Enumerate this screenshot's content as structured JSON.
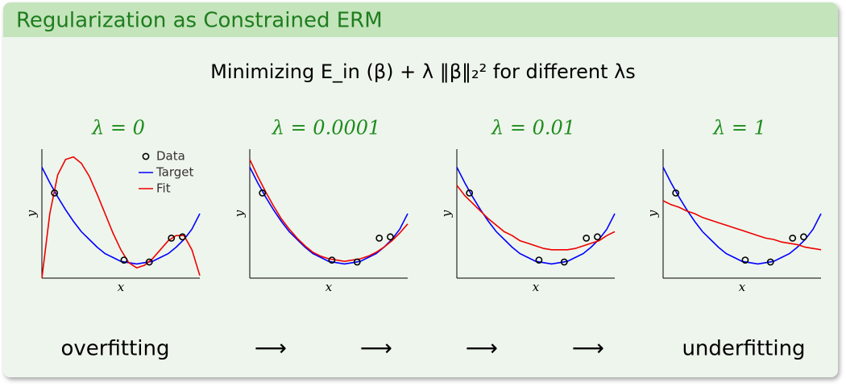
{
  "header": {
    "title": "Regularization as Constrained ERM",
    "subtitle": "Minimizing E_in (β) + λ ‖β‖₂² for different λs"
  },
  "chart_data": [
    {
      "type": "line",
      "title": "λ = 0",
      "xlabel": "x",
      "ylabel": "y",
      "xlim": [
        0,
        1
      ],
      "ylim": [
        0,
        1
      ],
      "x": [
        0,
        0.05,
        0.1,
        0.15,
        0.2,
        0.25,
        0.3,
        0.35,
        0.4,
        0.45,
        0.5,
        0.55,
        0.6,
        0.65,
        0.7,
        0.75,
        0.8,
        0.85,
        0.9,
        0.95,
        1
      ],
      "series": [
        {
          "name": "Target",
          "color": "#0000ff",
          "values": [
            0.86,
            0.74,
            0.63,
            0.53,
            0.44,
            0.36,
            0.3,
            0.24,
            0.19,
            0.16,
            0.13,
            0.12,
            0.11,
            0.12,
            0.13,
            0.16,
            0.19,
            0.24,
            0.3,
            0.38,
            0.5
          ]
        },
        {
          "name": "Fit",
          "color": "#ee0000",
          "values": [
            0,
            0.5,
            0.8,
            0.92,
            0.94,
            0.89,
            0.79,
            0.65,
            0.5,
            0.35,
            0.22,
            0.12,
            0.08,
            0.1,
            0.15,
            0.22,
            0.29,
            0.33,
            0.33,
            0.22,
            0.02
          ]
        }
      ],
      "points": {
        "name": "Data",
        "color": "#000000",
        "x": [
          0.08,
          0.52,
          0.68,
          0.82,
          0.89
        ],
        "y": [
          0.66,
          0.14,
          0.125,
          0.31,
          0.32
        ]
      }
    },
    {
      "type": "line",
      "title": "λ = 0.0001",
      "xlabel": "x",
      "ylabel": "y",
      "xlim": [
        0,
        1
      ],
      "ylim": [
        0,
        1
      ],
      "x": [
        0,
        0.05,
        0.1,
        0.15,
        0.2,
        0.25,
        0.3,
        0.35,
        0.4,
        0.45,
        0.5,
        0.55,
        0.6,
        0.65,
        0.7,
        0.75,
        0.8,
        0.85,
        0.9,
        0.95,
        1
      ],
      "series": [
        {
          "color": "#0000ff",
          "values": [
            0.86,
            0.74,
            0.63,
            0.53,
            0.44,
            0.36,
            0.3,
            0.24,
            0.19,
            0.16,
            0.13,
            0.12,
            0.11,
            0.12,
            0.13,
            0.16,
            0.19,
            0.24,
            0.3,
            0.38,
            0.5
          ]
        },
        {
          "color": "#ee0000",
          "values": [
            0.92,
            0.79,
            0.67,
            0.56,
            0.46,
            0.38,
            0.31,
            0.25,
            0.2,
            0.17,
            0.15,
            0.14,
            0.13,
            0.14,
            0.15,
            0.17,
            0.2,
            0.24,
            0.29,
            0.35,
            0.42
          ]
        }
      ],
      "points": {
        "color": "#000000",
        "x": [
          0.08,
          0.52,
          0.68,
          0.82,
          0.89
        ],
        "y": [
          0.66,
          0.14,
          0.125,
          0.31,
          0.32
        ]
      }
    },
    {
      "type": "line",
      "title": "λ = 0.01",
      "xlabel": "x",
      "ylabel": "y",
      "xlim": [
        0,
        1
      ],
      "ylim": [
        0,
        1
      ],
      "x": [
        0,
        0.05,
        0.1,
        0.15,
        0.2,
        0.25,
        0.3,
        0.35,
        0.4,
        0.45,
        0.5,
        0.55,
        0.6,
        0.65,
        0.7,
        0.75,
        0.8,
        0.85,
        0.9,
        0.95,
        1
      ],
      "series": [
        {
          "color": "#0000ff",
          "values": [
            0.86,
            0.74,
            0.63,
            0.53,
            0.44,
            0.36,
            0.3,
            0.24,
            0.19,
            0.16,
            0.13,
            0.12,
            0.11,
            0.12,
            0.13,
            0.16,
            0.19,
            0.24,
            0.3,
            0.38,
            0.5
          ]
        },
        {
          "color": "#ee0000",
          "values": [
            0.72,
            0.64,
            0.58,
            0.52,
            0.46,
            0.41,
            0.36,
            0.33,
            0.29,
            0.27,
            0.25,
            0.23,
            0.22,
            0.22,
            0.22,
            0.23,
            0.25,
            0.27,
            0.29,
            0.33,
            0.36
          ]
        }
      ],
      "points": {
        "color": "#000000",
        "x": [
          0.08,
          0.52,
          0.68,
          0.82,
          0.89
        ],
        "y": [
          0.66,
          0.14,
          0.125,
          0.31,
          0.32
        ]
      }
    },
    {
      "type": "line",
      "title": "λ = 1",
      "xlabel": "x",
      "ylabel": "y",
      "xlim": [
        0,
        1
      ],
      "ylim": [
        0,
        1
      ],
      "x": [
        0,
        0.05,
        0.1,
        0.15,
        0.2,
        0.25,
        0.3,
        0.35,
        0.4,
        0.45,
        0.5,
        0.55,
        0.6,
        0.65,
        0.7,
        0.75,
        0.8,
        0.85,
        0.9,
        0.95,
        1
      ],
      "series": [
        {
          "color": "#0000ff",
          "values": [
            0.86,
            0.74,
            0.63,
            0.53,
            0.44,
            0.36,
            0.3,
            0.24,
            0.19,
            0.16,
            0.13,
            0.12,
            0.11,
            0.12,
            0.13,
            0.16,
            0.19,
            0.24,
            0.3,
            0.38,
            0.5
          ]
        },
        {
          "color": "#ee0000",
          "values": [
            0.6,
            0.57,
            0.55,
            0.52,
            0.5,
            0.47,
            0.45,
            0.43,
            0.41,
            0.39,
            0.37,
            0.35,
            0.33,
            0.31,
            0.3,
            0.28,
            0.27,
            0.26,
            0.24,
            0.23,
            0.22
          ]
        }
      ],
      "points": {
        "color": "#000000",
        "x": [
          0.08,
          0.52,
          0.68,
          0.82,
          0.89
        ],
        "y": [
          0.66,
          0.14,
          0.125,
          0.31,
          0.32
        ]
      }
    }
  ],
  "footer": {
    "left": "overfitting",
    "arrows": [
      "⟶",
      "⟶",
      "⟶",
      "⟶"
    ],
    "right": "underfitting"
  }
}
